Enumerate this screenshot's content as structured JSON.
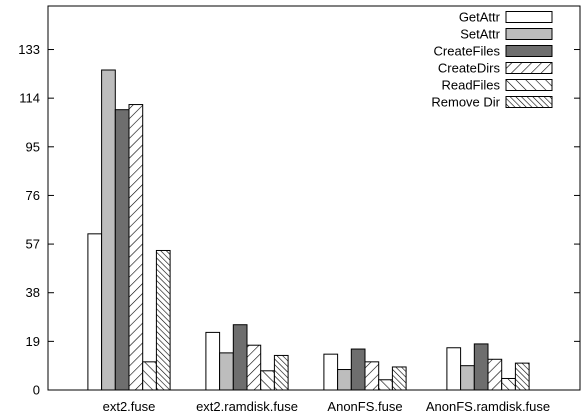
{
  "chart_data": {
    "type": "bar",
    "title": "",
    "xlabel": "",
    "ylabel": "",
    "ylim": [
      0,
      150
    ],
    "yticks": [
      0,
      19,
      38,
      57,
      76,
      95,
      114,
      133
    ],
    "grid": false,
    "legend_position": "top-right",
    "categories": [
      "ext2.fuse",
      "ext2.ramdisk.fuse",
      "AnonFS.fuse",
      "AnonFS.ramdisk.fuse"
    ],
    "series": [
      {
        "name": "GetAttr",
        "values": [
          61,
          22.5,
          14,
          16.5
        ]
      },
      {
        "name": "SetAttr",
        "values": [
          125,
          14.5,
          8,
          9.5
        ]
      },
      {
        "name": "CreateFiles",
        "values": [
          109.5,
          25.5,
          16,
          18
        ]
      },
      {
        "name": "CreateDirs",
        "values": [
          111.5,
          17.5,
          11,
          12
        ]
      },
      {
        "name": "ReadFiles",
        "values": [
          11,
          7.5,
          4,
          4.5
        ]
      },
      {
        "name": "Remove Dir",
        "values": [
          54.5,
          13.5,
          9,
          10.5
        ]
      }
    ]
  },
  "series_styles": [
    {
      "fill": "#ffffff",
      "pattern": "none"
    },
    {
      "fill": "#bdbdbd",
      "pattern": "none"
    },
    {
      "fill": "#6e6e6e",
      "pattern": "none"
    },
    {
      "fill": "#ffffff",
      "pattern": "diag-down-sparse"
    },
    {
      "fill": "#ffffff",
      "pattern": "diag-up-sparse"
    },
    {
      "fill": "#ffffff",
      "pattern": "diag-up-dense"
    }
  ]
}
